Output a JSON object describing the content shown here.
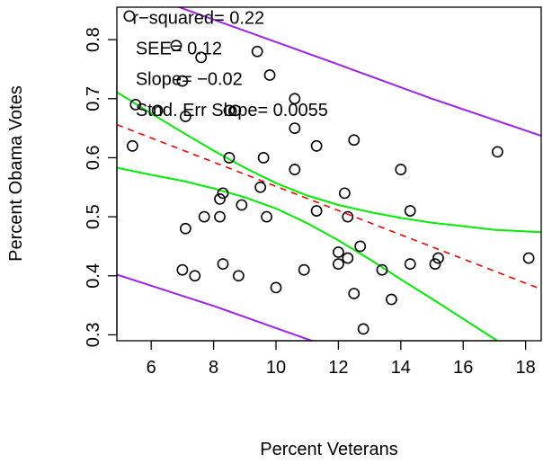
{
  "chart_data": {
    "type": "scatter",
    "title": "",
    "xlabel": "Percent Veterans",
    "ylabel": "Percent Obama Votes",
    "xlim": [
      4.9,
      18.5
    ],
    "ylim": [
      0.29,
      0.855
    ],
    "x_ticks": [
      6,
      8,
      10,
      12,
      14,
      16,
      18
    ],
    "y_ticks": [
      0.3,
      0.4,
      0.5,
      0.6,
      0.7,
      0.8
    ],
    "x_tick_labels": [
      "6",
      "8",
      "10",
      "12",
      "14",
      "16",
      "18"
    ],
    "y_tick_labels": [
      "0.3",
      "0.4",
      "0.5",
      "0.6",
      "0.7",
      "0.8"
    ],
    "grid": false,
    "points": [
      {
        "x": 5.3,
        "y": 0.84
      },
      {
        "x": 5.4,
        "y": 0.62
      },
      {
        "x": 5.5,
        "y": 0.69
      },
      {
        "x": 6.2,
        "y": 0.68
      },
      {
        "x": 6.8,
        "y": 0.79
      },
      {
        "x": 7.0,
        "y": 0.73
      },
      {
        "x": 7.1,
        "y": 0.67
      },
      {
        "x": 7.1,
        "y": 0.48
      },
      {
        "x": 7.0,
        "y": 0.41
      },
      {
        "x": 7.4,
        "y": 0.4
      },
      {
        "x": 7.6,
        "y": 0.77
      },
      {
        "x": 7.7,
        "y": 0.5
      },
      {
        "x": 8.2,
        "y": 0.53
      },
      {
        "x": 8.2,
        "y": 0.5
      },
      {
        "x": 8.3,
        "y": 0.54
      },
      {
        "x": 8.3,
        "y": 0.42
      },
      {
        "x": 8.5,
        "y": 0.68
      },
      {
        "x": 8.5,
        "y": 0.6
      },
      {
        "x": 8.7,
        "y": 0.68
      },
      {
        "x": 8.8,
        "y": 0.4
      },
      {
        "x": 8.9,
        "y": 0.52
      },
      {
        "x": 9.4,
        "y": 0.78
      },
      {
        "x": 9.5,
        "y": 0.55
      },
      {
        "x": 9.6,
        "y": 0.6
      },
      {
        "x": 9.7,
        "y": 0.5
      },
      {
        "x": 9.8,
        "y": 0.74
      },
      {
        "x": 10.0,
        "y": 0.38
      },
      {
        "x": 10.6,
        "y": 0.7
      },
      {
        "x": 10.6,
        "y": 0.65
      },
      {
        "x": 10.6,
        "y": 0.58
      },
      {
        "x": 10.9,
        "y": 0.41
      },
      {
        "x": 11.3,
        "y": 0.62
      },
      {
        "x": 11.3,
        "y": 0.51
      },
      {
        "x": 12.0,
        "y": 0.44
      },
      {
        "x": 12.0,
        "y": 0.42
      },
      {
        "x": 12.2,
        "y": 0.54
      },
      {
        "x": 12.3,
        "y": 0.5
      },
      {
        "x": 12.3,
        "y": 0.43
      },
      {
        "x": 12.5,
        "y": 0.63
      },
      {
        "x": 12.5,
        "y": 0.37
      },
      {
        "x": 12.7,
        "y": 0.45
      },
      {
        "x": 12.8,
        "y": 0.31
      },
      {
        "x": 13.4,
        "y": 0.41
      },
      {
        "x": 13.7,
        "y": 0.36
      },
      {
        "x": 14.0,
        "y": 0.58
      },
      {
        "x": 14.3,
        "y": 0.51
      },
      {
        "x": 14.3,
        "y": 0.42
      },
      {
        "x": 15.1,
        "y": 0.42
      },
      {
        "x": 15.2,
        "y": 0.43
      },
      {
        "x": 17.1,
        "y": 0.61
      },
      {
        "x": 18.1,
        "y": 0.43
      }
    ],
    "fit_line": {
      "style": "dashed",
      "color": "#ff0000",
      "intercept": 0.7565,
      "slope": -0.0205
    },
    "confidence_band": {
      "color": "#00ee00",
      "upper": [
        [
          4.9,
          0.711
        ],
        [
          6,
          0.675
        ],
        [
          7,
          0.643
        ],
        [
          8,
          0.612
        ],
        [
          9,
          0.583
        ],
        [
          10,
          0.557
        ],
        [
          11,
          0.536
        ],
        [
          12,
          0.52
        ],
        [
          13,
          0.508
        ],
        [
          14,
          0.498
        ],
        [
          15,
          0.49
        ],
        [
          16,
          0.484
        ],
        [
          17,
          0.478
        ],
        [
          18.5,
          0.474
        ]
      ],
      "lower": [
        [
          4.9,
          0.583
        ],
        [
          6,
          0.571
        ],
        [
          7,
          0.561
        ],
        [
          8,
          0.548
        ],
        [
          9,
          0.533
        ],
        [
          10,
          0.514
        ],
        [
          11,
          0.489
        ],
        [
          12,
          0.46
        ],
        [
          13,
          0.428
        ],
        [
          14,
          0.394
        ],
        [
          15,
          0.361
        ],
        [
          16,
          0.327
        ],
        [
          17,
          0.293
        ],
        [
          18.5,
          0.242
        ]
      ]
    },
    "prediction_band": {
      "color": "#a020f0",
      "upper": [
        [
          4.9,
          0.893
        ],
        [
          8,
          0.834
        ],
        [
          12,
          0.758
        ],
        [
          15,
          0.7
        ],
        [
          18.5,
          0.637
        ]
      ],
      "lower": [
        [
          4.9,
          0.402
        ],
        [
          8,
          0.349
        ],
        [
          11.2,
          0.289
        ]
      ]
    },
    "annotations": [
      {
        "text": "r−squared=  0.22",
        "x": 5.4,
        "y": 0.835
      },
      {
        "text": "SEE= 0.12",
        "x": 5.5,
        "y": 0.783
      },
      {
        "text": "Slope=  −0.02",
        "x": 5.5,
        "y": 0.731
      },
      {
        "text": "Stnd. Err Slope= 0.0055",
        "x": 5.5,
        "y": 0.679
      }
    ]
  }
}
